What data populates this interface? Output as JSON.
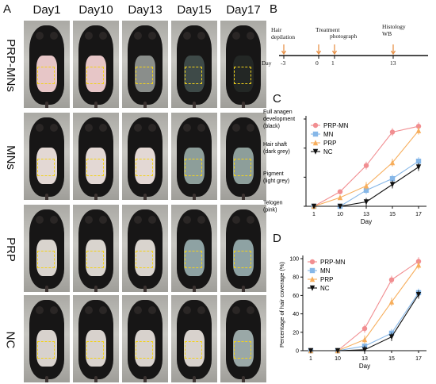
{
  "panel_letters": {
    "a": "A",
    "b": "B",
    "c": "C",
    "d": "D"
  },
  "days": [
    "Day1",
    "Day10",
    "Day13",
    "Day15",
    "Day17"
  ],
  "groups": [
    "PRP-MNs",
    "MNs",
    "PRP",
    "NC"
  ],
  "timeline": {
    "day_label": "Day",
    "events": [
      {
        "day": "-3",
        "label": "Hair\ndepilation"
      },
      {
        "day": "0",
        "label": "Treatment"
      },
      {
        "day": "1",
        "label": "photograph"
      },
      {
        "day": "13",
        "label": "Histology\nWB"
      }
    ],
    "colors": {
      "line": "#111111",
      "arrow": "#e8934a"
    }
  },
  "chart_data": [
    {
      "type": "line",
      "panel": "C",
      "xlabel": "Day",
      "categories": [
        "1",
        "10",
        "13",
        "15",
        "17"
      ],
      "y_stage_labels": [
        "Full anagen\ndevelopment\n(black)",
        "Hair shaft\n(dark grey)",
        "Pigment\n(light grey)",
        "Telogen\n(pink)"
      ],
      "ylim": [
        0,
        3
      ],
      "legend": "top-left",
      "series": [
        {
          "name": "PRP-MN",
          "color": "#f18e91",
          "marker": "circle",
          "values": [
            0,
            0.5,
            1.4,
            2.55,
            2.75
          ]
        },
        {
          "name": "MN",
          "color": "#86b7e8",
          "marker": "square",
          "values": [
            0,
            0,
            0.55,
            0.95,
            1.55
          ]
        },
        {
          "name": "PRP",
          "color": "#f7ae5c",
          "marker": "triangle",
          "values": [
            0,
            0.3,
            0.7,
            1.5,
            2.6
          ]
        },
        {
          "name": "NC",
          "color": "#111111",
          "marker": "triangle-down",
          "values": [
            0,
            0,
            0.15,
            0.75,
            1.35
          ]
        }
      ]
    },
    {
      "type": "line",
      "panel": "D",
      "xlabel": "Day",
      "ylabel": "Percentage of hair coverage (%)",
      "categories": [
        "1",
        "10",
        "13",
        "15",
        "17"
      ],
      "yticks": [
        "0",
        "20",
        "40",
        "60",
        "80",
        "100"
      ],
      "ylim": [
        0,
        100
      ],
      "legend": "top-left",
      "series": [
        {
          "name": "PRP-MN",
          "color": "#f18e91",
          "marker": "circle",
          "values": [
            0,
            0,
            24,
            77,
            97
          ]
        },
        {
          "name": "MN",
          "color": "#86b7e8",
          "marker": "square",
          "values": [
            0,
            0,
            5,
            19,
            63
          ]
        },
        {
          "name": "PRP",
          "color": "#f7ae5c",
          "marker": "triangle",
          "values": [
            0,
            0,
            12,
            53,
            93
          ]
        },
        {
          "name": "NC",
          "color": "#111111",
          "marker": "triangle-down",
          "values": [
            0,
            0,
            1,
            15,
            61
          ]
        }
      ]
    }
  ]
}
